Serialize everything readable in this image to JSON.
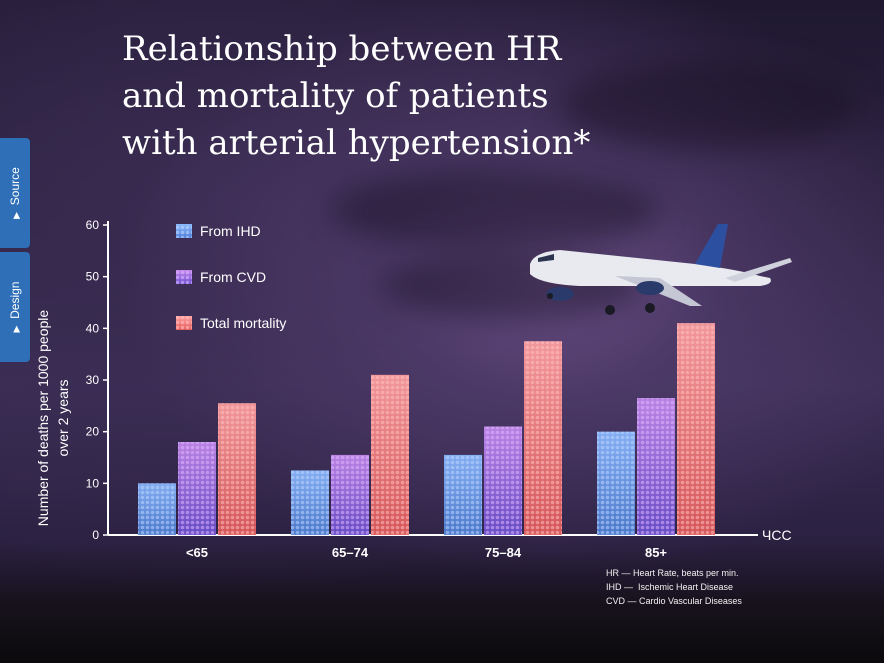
{
  "title_lines": [
    "Relationship between HR",
    "and mortality of patients",
    "with arterial hypertension*"
  ],
  "side_tabs": [
    {
      "label": "Source",
      "icon": "triangle-right-icon"
    },
    {
      "label": "Design",
      "icon": "triangle-right-icon"
    }
  ],
  "notes": [
    "HR — Heart Rate, beats per min.",
    "IHD —  Ischemic Heart Disease",
    "CVD — Cardio Vascular Diseases"
  ],
  "colors": {
    "ihd": [
      "#4e7fd6",
      "#8ab8ff"
    ],
    "cvd": [
      "#6a4fd0",
      "#c489ee"
    ],
    "total": [
      "#e35a5a",
      "#ff9f9f"
    ]
  },
  "chart_data": {
    "type": "bar",
    "ylabel_lines": [
      "Number of deaths per 1000 people",
      "over 2 years"
    ],
    "xlabel": "ЧСС",
    "ylim": [
      0,
      60
    ],
    "yticks": [
      0,
      10,
      20,
      30,
      40,
      50,
      60
    ],
    "categories": [
      "<65",
      "65–74",
      "75–84",
      "85+"
    ],
    "series": [
      {
        "name": "From IHD",
        "values": [
          10,
          12.5,
          15.5,
          20
        ]
      },
      {
        "name": "From CVD",
        "values": [
          18,
          15.5,
          21,
          26.5
        ]
      },
      {
        "name": "Total mortality",
        "values": [
          25.5,
          31,
          37.5,
          41
        ]
      }
    ],
    "grid": false,
    "legend_position": "top-left"
  }
}
